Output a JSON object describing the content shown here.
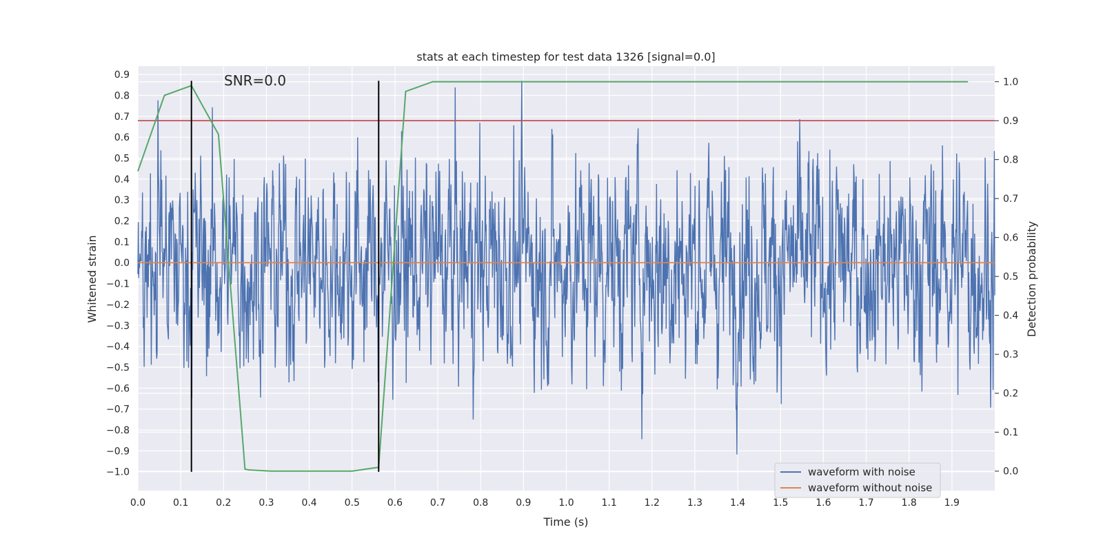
{
  "chart_data": {
    "type": "line",
    "title": "stats at each timestep for test data 1326 [signal=0.0]",
    "xlabel": "Time (s)",
    "ylabel": "Whitened strain",
    "y2label": "Detection probability",
    "xlim": [
      0.0,
      2.0
    ],
    "ylim": [
      -1.09,
      0.94
    ],
    "y2lim": [
      -0.05,
      1.04
    ],
    "x_ticks": [
      0.0,
      0.1,
      0.2,
      0.3,
      0.4,
      0.5,
      0.6,
      0.7,
      0.8,
      0.9,
      1.0,
      1.1,
      1.2,
      1.3,
      1.4,
      1.5,
      1.6,
      1.7,
      1.8,
      1.9
    ],
    "x_tick_labels": [
      "0.0",
      "0.1",
      "0.2",
      "0.3",
      "0.4",
      "0.5",
      "0.6",
      "0.7",
      "0.8",
      "0.9",
      "1.0",
      "1.1",
      "1.2",
      "1.3",
      "1.4",
      "1.5",
      "1.6",
      "1.7",
      "1.8",
      "1.9"
    ],
    "y_ticks": [
      0.9,
      0.8,
      0.7,
      0.6,
      0.5,
      0.4,
      0.3,
      0.2,
      0.1,
      0.0,
      -0.1,
      -0.2,
      -0.3,
      -0.4,
      -0.5,
      -0.6,
      -0.7,
      -0.8,
      -0.9,
      -1.0
    ],
    "y_tick_labels": [
      "0.9",
      "0.8",
      "0.7",
      "0.6",
      "0.5",
      "0.4",
      "0.3",
      "0.2",
      "0.1",
      "0.0",
      "−0.1",
      "−0.2",
      "−0.3",
      "−0.4",
      "−0.5",
      "−0.6",
      "−0.7",
      "−0.8",
      "−0.9",
      "−1.0"
    ],
    "y2_ticks": [
      1.0,
      0.9,
      0.8,
      0.7,
      0.6,
      0.5,
      0.4,
      0.3,
      0.2,
      0.1,
      0.0
    ],
    "y2_tick_labels": [
      "1.0",
      "0.9",
      "0.8",
      "0.7",
      "0.6",
      "0.5",
      "0.4",
      "0.3",
      "0.2",
      "0.1",
      "0.0"
    ],
    "annotation": "SNR=0.0",
    "grid": true,
    "legend_position": "lower-right",
    "series": [
      {
        "name": "waveform with noise",
        "axis": "left",
        "color": "#4c72b0",
        "kind": "noise",
        "x_range": [
          0.0,
          2.0
        ],
        "approx_range": [
          -1.0,
          0.87
        ]
      },
      {
        "name": "waveform without noise",
        "axis": "left",
        "color": "#dd8452",
        "x": [
          0.0,
          2.0
        ],
        "y": [
          0.0,
          0.0
        ]
      },
      {
        "axis": "right",
        "color": "#55a868",
        "x": [
          0.0,
          0.062,
          0.125,
          0.188,
          0.25,
          0.26,
          0.312,
          0.375,
          0.438,
          0.5,
          0.562,
          0.625,
          0.688,
          0.75,
          0.812,
          0.875,
          0.938,
          1.0,
          1.0625,
          1.125,
          1.1875,
          1.25,
          1.3125,
          1.375,
          1.4375,
          1.5,
          1.5625,
          1.625,
          1.6875,
          1.75,
          1.8125,
          1.875,
          1.9375
        ],
        "y": [
          0.77,
          0.965,
          0.99,
          0.865,
          0.005,
          0.003,
          0.0,
          0.0,
          0.0,
          0.0,
          0.01,
          0.975,
          1.0,
          1.0,
          1.0,
          1.0,
          1.0,
          1.0,
          1.0,
          1.0,
          1.0,
          1.0,
          1.0,
          1.0,
          1.0,
          1.0,
          1.0,
          1.0,
          1.0,
          1.0,
          1.0,
          1.0,
          1.0
        ]
      }
    ],
    "hlines": [
      {
        "axis": "right",
        "y": 0.9,
        "color": "#c44e52"
      }
    ],
    "vlines": [
      {
        "x": 0.125,
        "y_range": [
          -1.0,
          0.87
        ],
        "color": "#000000"
      },
      {
        "x": 0.562,
        "y_range": [
          -1.0,
          0.87
        ],
        "color": "#000000"
      }
    ]
  }
}
